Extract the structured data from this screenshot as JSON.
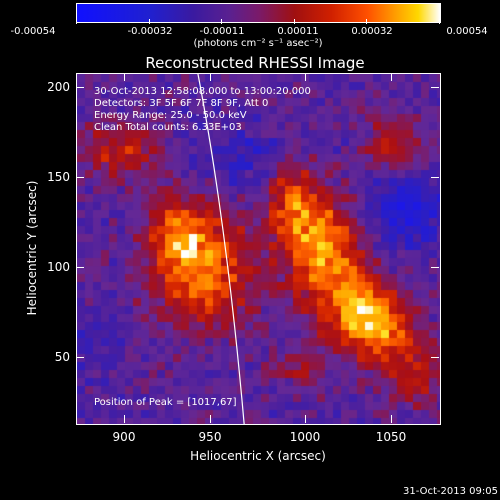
{
  "colorbar": {
    "tick_labels": [
      "-0.00054",
      "-0.00032",
      "-0.00011",
      "0.00011",
      "0.00032",
      "0.00054"
    ],
    "units": "(photons cm⁻² s⁻¹ asec⁻²)"
  },
  "title": "Reconstructed RHESSI Image",
  "info_lines": [
    "30-Oct-2013 12:58:08.000 to 13:00:20.000",
    "Detectors: 3F 5F 6F 7F 8F 9F, Att 0",
    "Energy Range: 25.0 - 50.0 keV",
    "Clean     Total counts: 6.33E+03"
  ],
  "peak_label": "Position of Peak = [1017,67]",
  "axes": {
    "x_label": "Heliocentric X (arcsec)",
    "y_label": "Heliocentric Y (arcsec)",
    "x_ticks": [
      "900",
      "950",
      "1000",
      "1050"
    ],
    "y_ticks": [
      "200",
      "150",
      "100",
      "50"
    ],
    "x_range": [
      873,
      1063
    ],
    "y_range": [
      13,
      207
    ]
  },
  "timestamp": "31-Oct-2013 09:05",
  "chart_data": {
    "type": "heatmap",
    "title": "Reconstructed RHESSI Image",
    "xlabel": "Heliocentric X (arcsec)",
    "ylabel": "Heliocentric Y (arcsec)",
    "xlim": [
      873,
      1063
    ],
    "ylim": [
      13,
      207
    ],
    "color_range": [
      -0.00054,
      0.00054
    ],
    "peak": [
      1017,
      67
    ],
    "bright_regions": [
      {
        "x": 938,
        "y": 100
      },
      {
        "x": 1000,
        "y": 112
      },
      {
        "x": 1030,
        "y": 65
      }
    ]
  }
}
